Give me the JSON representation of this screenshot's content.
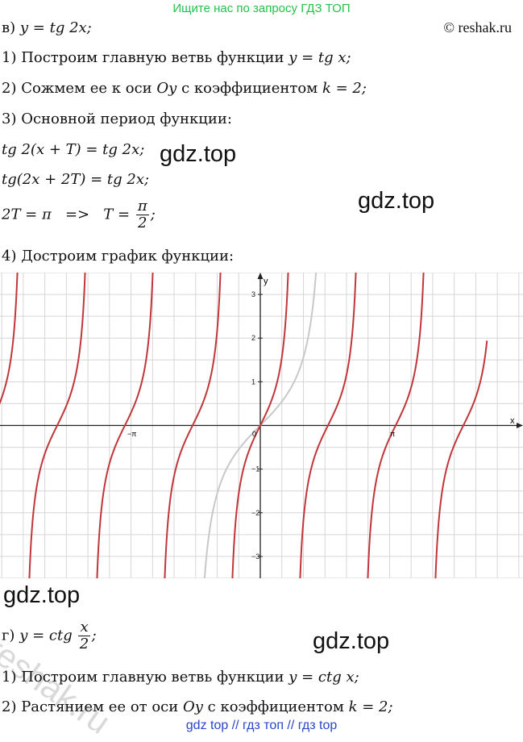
{
  "banner": "Ищите нас по запросу ГДЗ ТОП",
  "site_credit": "© reshak.ru",
  "part_v": {
    "label": "в)",
    "formula": "y = tg 2x;",
    "step1_text": "1) Построим главную ветвь функции",
    "step1_formula": "y = tg x;",
    "step2_text": "2) Сожмем ее к оси",
    "step2_axis": "Oy",
    "step2_mid": "с коэффициентом",
    "step2_formula": "k = 2;",
    "step3_text": "3) Основной период функции:",
    "eq1": "tg 2(x + T) = tg 2x;",
    "eq2": "tg(2x + 2T) = tg 2x;",
    "eq3_left": "2T = π   =>   T =",
    "eq3_num": "π",
    "eq3_den": "2",
    "eq3_end": ";",
    "step4_text": "4) Достроим график функции:"
  },
  "graph": {
    "axis_x_label": "x",
    "axis_y_label": "y",
    "origin_label": "0",
    "neg_pi_label": "−π",
    "pi_label": "π",
    "y_ticks": [
      "3",
      "2",
      "1",
      "−1",
      "−2",
      "−3"
    ],
    "main_color": "#c0363a",
    "helper_color": "#c8c8c8",
    "grid_color": "#d6d6d6"
  },
  "chart_data": {
    "type": "line",
    "series": [
      {
        "function": "tan(2x)",
        "color": "#c0363a"
      },
      {
        "function": "tan(x), x in (-π/2, π/2)",
        "color": "#c8c8c8"
      }
    ],
    "xlim": [
      -6.04,
      5.06
    ],
    "ylim": [
      -3.5,
      3.5
    ],
    "x_ticks": [
      {
        "value": -3.1416,
        "label": "−π"
      },
      {
        "value": 0,
        "label": "0"
      },
      {
        "value": 3.1416,
        "label": "π"
      }
    ],
    "y_ticks": [
      -3,
      -2,
      -1,
      1,
      2,
      3
    ],
    "grid": true
  },
  "part_g": {
    "label": "г)",
    "formula_left": "y = ctg",
    "formula_num": "x",
    "formula_den": "2",
    "formula_end": ";",
    "step1_text": "1) Построим главную ветвь функции",
    "step1_formula": "y = ctg x;",
    "step2_text": "2) Растянием ее от оси",
    "step2_axis": "Oy",
    "step2_mid": "с коэффициентом",
    "step2_formula": "k = 2;"
  },
  "watermarks": {
    "gdz1": "gdz.top",
    "gdz2": "gdz.top",
    "gdz3": "gdz.top",
    "gdz4": "gdz.top",
    "reshak": "reshak.ru"
  },
  "footer": "gdz top  //  гдз топ  //  гдз top"
}
